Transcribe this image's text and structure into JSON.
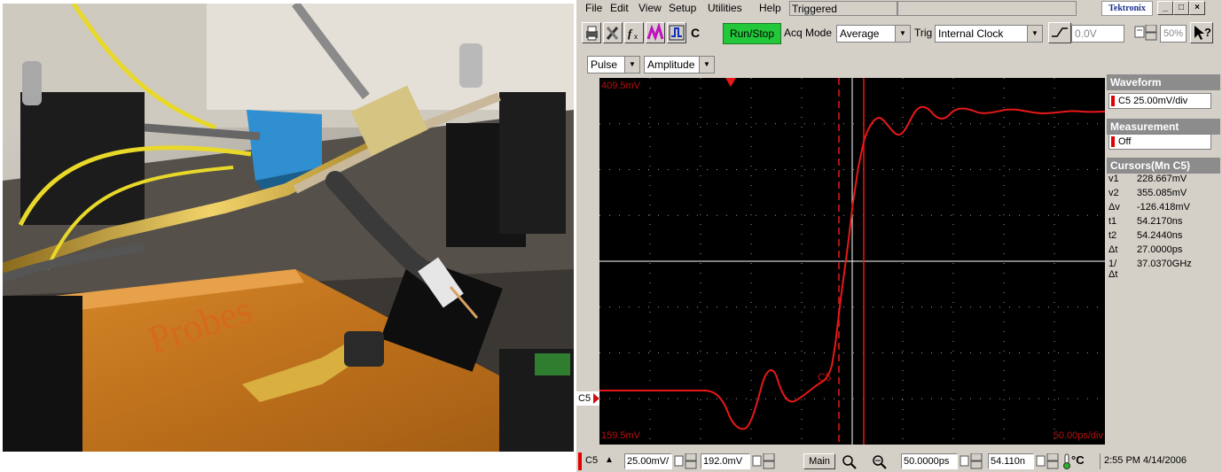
{
  "menu": {
    "items": [
      "File",
      "Edit",
      "View",
      "Setup",
      "Utilities",
      "Help"
    ],
    "status": "Triggered",
    "brand": "Tektronix",
    "window_buttons": [
      "_",
      "□",
      "×"
    ]
  },
  "toolbar": {
    "c_label": "C",
    "run_stop": "Run/Stop",
    "acq_mode_label": "Acq Mode",
    "acq_mode_value": "Average",
    "trig_label": "Trig",
    "trig_value": "Internal Clock",
    "level_value": "0.0V",
    "zoom_value": "50%"
  },
  "toolbar2": {
    "category_value": "Pulse",
    "measurement_value": "Amplitude"
  },
  "screen": {
    "top_level": "409.5mV",
    "bottom_level": "159.5mV",
    "timebase": "50.00ps/div",
    "channel_tag": "C5",
    "channel_marker": "C5"
  },
  "side": {
    "waveform_header": "Waveform",
    "waveform_value": "C5 25.00mV/div",
    "measurement_header": "Measurement",
    "measurement_value": "Off",
    "cursors_header": "Cursors(Mn C5)",
    "cursors": [
      {
        "k": "v1",
        "v": "228.667mV"
      },
      {
        "k": "v2",
        "v": "355.085mV"
      },
      {
        "k": "Δv",
        "v": "-126.418mV"
      },
      {
        "k": "t1",
        "v": "54.2170ns"
      },
      {
        "k": "t2",
        "v": "54.2440ns"
      },
      {
        "k": "Δt",
        "v": "27.0000ps"
      },
      {
        "k": "1/Δt",
        "v": "37.0370GHz"
      }
    ]
  },
  "bottom": {
    "channel": "C5",
    "vscale": "25.00mV/",
    "voffset": "192.0mV",
    "view": "Main",
    "hscale": "50.0000ps",
    "hpos": "54.110n",
    "temp": "°C",
    "datetime": "2:55 PM 4/14/2006"
  },
  "colors": {
    "trace": "#e81818",
    "run_stop": "#22c83a",
    "panel": "#d4d0c8",
    "screen_bg": "#000000"
  }
}
